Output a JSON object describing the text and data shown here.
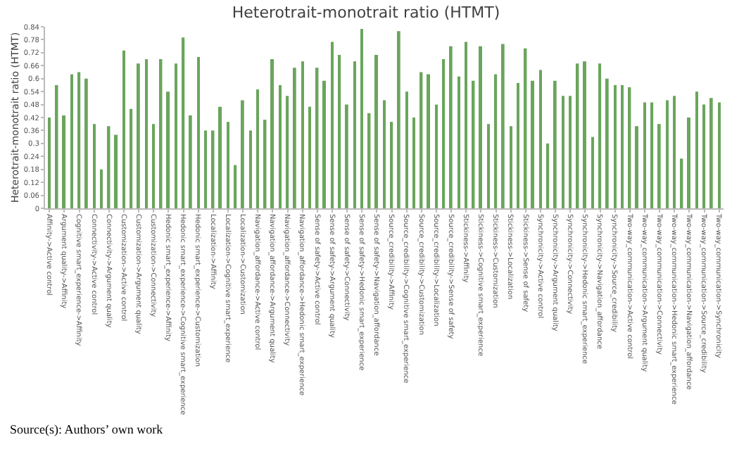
{
  "chart_data": {
    "type": "bar",
    "title": "Heterotrait-monotrait ratio (HTMT)",
    "ylabel": "Heterotrait-monotrait ratio (HTMT)",
    "categories": [
      "Affinity->Active control",
      null,
      "Argument quality->Affinity",
      null,
      "Cognitive smart_experience->Affinity",
      null,
      "Connectivity->Active control",
      null,
      "Connectivity->Argument quality",
      null,
      "Customization->Active control",
      null,
      "Customization->Argument quality",
      null,
      "Customization->Connectivity",
      null,
      "Hedonic smart_experience->Affinity",
      null,
      "Hedonic smart_experience->Cognitive smart_experience",
      null,
      "Hedonic smart_experience->Customization",
      null,
      "Localization->Affinity",
      null,
      "Localization->Cognitive smart_experience",
      null,
      "Localization->Customization",
      null,
      "Navigation_affordance->Active control",
      null,
      "Navigation_affordance->Argument quality",
      null,
      "Navigation_affordance->Connectivity",
      null,
      "Navigation_affordance->Hedonic smart_experience",
      null,
      "Sense of safety->Active control",
      null,
      "Sense of safety->Argument quality",
      null,
      "Sense of safety->Connectivity",
      null,
      "Sense of safety->Hedonic smart_experience",
      null,
      "Sense of safety->Navigation_affordance",
      null,
      "Source_credibility->Affinity",
      null,
      "Source_credibility->Cognitive smart_experience",
      null,
      "Source_credibility->Customization",
      null,
      "Source_credibility->Localization",
      null,
      "Source_credibility->Sense of safety",
      null,
      "Stickiness->Affinity",
      null,
      "Stickiness->Cognitive smart_experience",
      null,
      "Stickiness->Customization",
      null,
      "Stickiness->Localization",
      null,
      "Stickiness->Sense of safety",
      null,
      "Synchronicity->Active control",
      null,
      "Synchronicity->Argument quality",
      null,
      "Synchronicity->Connectivity",
      null,
      "Synchronicity->Hedonic smart_experience",
      null,
      "Synchronicity->Navigation_affordance",
      null,
      "Synchronicity->Source_credibility",
      null,
      "Two-way_communication->Active control",
      null,
      "Two-way_communication->Argument quality",
      null,
      "Two-way_communication->Connectivity",
      null,
      "Two-way_communication->Hedonic smart_experience",
      null,
      "Two-way_communication->Navigation_affordance",
      null,
      "Two-way_communication->Source_credibility",
      null,
      "Two-way_communication->Synchronicity"
    ],
    "values": [
      0.42,
      0.57,
      0.43,
      0.62,
      0.63,
      0.6,
      0.39,
      0.18,
      0.38,
      0.34,
      0.73,
      0.46,
      0.67,
      0.69,
      0.39,
      0.69,
      0.54,
      0.67,
      0.79,
      0.43,
      0.7,
      0.36,
      0.36,
      0.47,
      0.4,
      0.2,
      0.5,
      0.36,
      0.55,
      0.41,
      0.69,
      0.57,
      0.52,
      0.65,
      0.68,
      0.47,
      0.65,
      0.59,
      0.77,
      0.71,
      0.48,
      0.68,
      0.83,
      0.44,
      0.71,
      0.5,
      0.4,
      0.82,
      0.54,
      0.42,
      0.63,
      0.62,
      0.48,
      0.69,
      0.75,
      0.61,
      0.77,
      0.59,
      0.75,
      0.39,
      0.62,
      0.76,
      0.38,
      0.58,
      0.74,
      0.59,
      0.64,
      0.3,
      0.59,
      0.52,
      0.52,
      0.67,
      0.68,
      0.33,
      0.67,
      0.6,
      0.57,
      0.57,
      0.56,
      0.38,
      0.49,
      0.49,
      0.39,
      0.5,
      0.52,
      0.23,
      0.42,
      0.54,
      0.48,
      0.51,
      0.49
    ],
    "color": "#6aa55c",
    "ylim": [
      0,
      0.84
    ],
    "yticks": [
      0,
      0.06,
      0.12,
      0.18,
      0.24,
      0.3,
      0.36,
      0.42,
      0.48,
      0.54,
      0.6,
      0.66,
      0.72,
      0.78,
      0.84
    ],
    "annotations": [
      "Source(s): Authors’ own work"
    ]
  }
}
